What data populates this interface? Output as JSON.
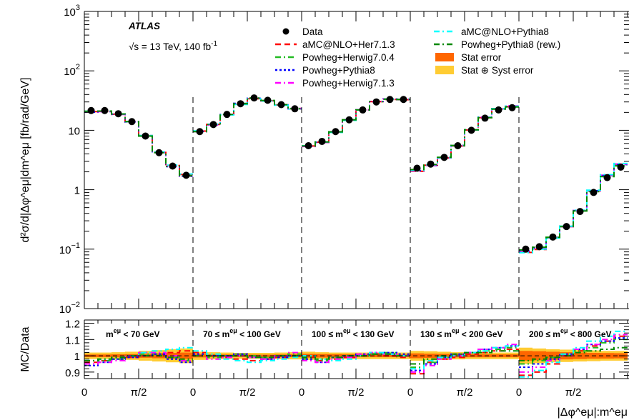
{
  "chart_data": {
    "type": "line",
    "experiment": "ATLAS",
    "energy_label": "√s = 13 TeV, 140 fb",
    "lumi_superscript": "-1",
    "ylabel": "d²σ/d|Δφ^eμ|dm^eμ [fb/rad/GeV]",
    "ratio_ylabel": "MC/Data",
    "xlabel": "|Δφ^eμ|:m^eμ",
    "y_scale": "log",
    "ylim": [
      0.01,
      1000
    ],
    "ratio_ylim": [
      0.86,
      1.22
    ],
    "y_ticks": [
      {
        "base": "10",
        "exp": "3"
      },
      {
        "base": "10",
        "exp": "2"
      },
      {
        "base": "10",
        "exp": ""
      },
      {
        "base": "1",
        "exp": ""
      },
      {
        "base": "10",
        "exp": "−1"
      },
      {
        "base": "10",
        "exp": "−2"
      }
    ],
    "ratio_ticks": [
      "1.2",
      "1.1",
      "1",
      "0.9"
    ],
    "x_tick_labels": [
      "0",
      "π/2",
      "0",
      "π/2",
      "0",
      "π/2",
      "0",
      "π/2",
      "0",
      "π/2"
    ],
    "mass_bins": [
      {
        "label_pre": "",
        "label_post": " < 70 GeV"
      },
      {
        "label_pre": "70 ≤ ",
        "label_post": " < 100 GeV"
      },
      {
        "label_pre": "100 ≤ ",
        "label_post": " < 130 GeV"
      },
      {
        "label_pre": "130 ≤ ",
        "label_post": " < 200 GeV"
      },
      {
        "label_pre": "200 ≤ ",
        "label_post": " < 800 GeV"
      }
    ],
    "mass_symbol": "m",
    "mass_superscript": "eμ",
    "legend": [
      {
        "label": "Data",
        "style": "marker",
        "color": "#000000"
      },
      {
        "label": "aMC@NLO+Her7.1.3",
        "style": "dash",
        "color": "#ff0000"
      },
      {
        "label": "Powheg+Herwig7.0.4",
        "style": "dashdot",
        "color": "#22bb22"
      },
      {
        "label": "Powheg+Pythia8",
        "style": "dot",
        "color": "#0000ff"
      },
      {
        "label": "Powheg+Herwig7.1.3",
        "style": "dashdot",
        "color": "#ff00ff"
      },
      {
        "label": "aMC@NLO+Pythia8",
        "style": "dashdot",
        "color": "#00ffff"
      },
      {
        "label": "Powheg+Pythia8 (rew.)",
        "style": "dashdot",
        "color": "#008800"
      },
      {
        "label": "Stat error",
        "style": "box",
        "color": "#ff6600"
      },
      {
        "label": "Stat ⊕ Syst error",
        "style": "box",
        "color": "#ffcc33"
      }
    ],
    "data_values": [
      [
        21.5,
        21.5,
        19,
        14,
        8,
        4.2,
        2.5,
        1.75
      ],
      [
        9.5,
        12.5,
        18.5,
        28,
        35,
        32,
        27,
        23
      ],
      [
        5.5,
        6.5,
        9.5,
        15,
        22,
        30,
        33,
        33
      ],
      [
        2.3,
        2.7,
        3.5,
        5.5,
        10,
        16,
        22,
        24
      ],
      [
        0.1,
        0.11,
        0.16,
        0.24,
        0.43,
        0.9,
        1.6,
        2.4
      ]
    ],
    "ratio_values": {
      "aMC@NLO+Her7.1.3": [
        [
          0.96,
          0.97,
          0.98,
          0.99,
          1.0,
          1.01,
          1.02,
          1.03
        ],
        [
          1.02,
          1.0,
          0.99,
          0.98,
          0.97,
          0.98,
          0.99,
          1.0
        ],
        [
          0.99,
          0.97,
          0.98,
          0.99,
          1.0,
          1.01,
          1.0,
          0.99
        ],
        [
          0.89,
          0.96,
          0.98,
          0.99,
          1.01,
          1.02,
          1.03,
          1.04
        ],
        [
          0.88,
          0.9,
          0.95,
          1.0,
          1.03,
          1.06,
          1.09,
          1.12
        ]
      ],
      "Powheg+Herwig7.0.4": [
        [
          0.95,
          0.97,
          0.98,
          1.0,
          1.01,
          1.01,
          0.99,
          0.97
        ],
        [
          1.0,
          0.99,
          1.0,
          1.01,
          1.0,
          0.99,
          1.0,
          1.01
        ],
        [
          0.98,
          0.97,
          0.99,
          1.0,
          1.0,
          1.01,
          1.02,
          1.0
        ],
        [
          0.93,
          0.96,
          0.99,
          1.0,
          1.02,
          1.03,
          1.04,
          1.05
        ],
        [
          0.95,
          0.97,
          0.99,
          1.01,
          1.03,
          1.05,
          1.08,
          1.1
        ]
      ],
      "Powheg+Pythia8": [
        [
          0.94,
          0.96,
          0.98,
          0.99,
          1.0,
          1.01,
          0.98,
          0.96
        ],
        [
          1.01,
          1.0,
          1.0,
          1.01,
          0.99,
          0.98,
          0.99,
          1.0
        ],
        [
          0.98,
          0.96,
          0.99,
          1.0,
          1.01,
          1.02,
          1.02,
          1.01
        ],
        [
          0.91,
          0.95,
          0.99,
          1.01,
          1.02,
          1.04,
          1.05,
          1.06
        ],
        [
          0.93,
          0.95,
          0.98,
          1.01,
          1.04,
          1.07,
          1.09,
          1.11
        ]
      ],
      "Powheg+Herwig7.1.3": [
        [
          0.95,
          0.96,
          0.97,
          1.0,
          1.02,
          1.02,
          1.0,
          0.97
        ],
        [
          1.0,
          0.98,
          0.99,
          1.0,
          0.99,
          0.98,
          1.0,
          1.02
        ],
        [
          0.97,
          0.96,
          0.98,
          0.99,
          1.01,
          1.02,
          1.01,
          1.0
        ],
        [
          0.9,
          0.94,
          0.98,
          1.0,
          1.02,
          1.04,
          1.05,
          1.07
        ],
        [
          0.9,
          0.93,
          0.97,
          1.0,
          1.04,
          1.07,
          1.1,
          1.13
        ]
      ],
      "aMC@NLO+Pythia8": [
        [
          0.97,
          0.98,
          0.99,
          1.0,
          1.02,
          1.03,
          1.04,
          1.05
        ],
        [
          1.03,
          1.01,
          0.98,
          0.97,
          0.96,
          0.97,
          0.98,
          0.99
        ],
        [
          1.0,
          0.98,
          0.97,
          0.98,
          1.0,
          1.02,
          1.01,
          1.0
        ],
        [
          0.92,
          0.97,
          0.99,
          1.0,
          1.02,
          1.03,
          1.05,
          1.06
        ],
        [
          0.87,
          0.91,
          0.96,
          1.01,
          1.05,
          1.09,
          1.12,
          1.15
        ]
      ],
      "Powheg+Pythia8 (rew.)": [
        [
          0.97,
          0.98,
          0.99,
          1.0,
          1.0,
          1.0,
          0.99,
          0.98
        ],
        [
          1.0,
          1.0,
          1.0,
          1.0,
          0.99,
          0.99,
          1.0,
          1.0
        ],
        [
          0.99,
          0.98,
          0.99,
          1.0,
          1.0,
          1.01,
          1.01,
          1.0
        ],
        [
          0.95,
          0.98,
          1.0,
          1.01,
          1.02,
          1.02,
          1.03,
          1.03
        ],
        [
          0.97,
          0.98,
          0.99,
          1.0,
          1.02,
          1.03,
          1.04,
          1.05
        ]
      ]
    },
    "stat_error": [
      [
        0.008,
        0.008,
        0.009,
        0.01,
        0.012,
        0.015,
        0.018,
        0.02
      ],
      [
        0.01,
        0.009,
        0.008,
        0.007,
        0.007,
        0.007,
        0.008,
        0.009
      ],
      [
        0.012,
        0.011,
        0.01,
        0.009,
        0.008,
        0.008,
        0.008,
        0.008
      ],
      [
        0.015,
        0.013,
        0.012,
        0.01,
        0.009,
        0.009,
        0.009,
        0.009
      ],
      [
        0.03,
        0.028,
        0.025,
        0.022,
        0.02,
        0.018,
        0.017,
        0.016
      ]
    ],
    "total_error": [
      [
        0.02,
        0.02,
        0.022,
        0.025,
        0.03,
        0.035,
        0.04,
        0.045
      ],
      [
        0.025,
        0.022,
        0.02,
        0.018,
        0.018,
        0.018,
        0.02,
        0.022
      ],
      [
        0.025,
        0.022,
        0.02,
        0.02,
        0.02,
        0.02,
        0.02,
        0.02
      ],
      [
        0.03,
        0.028,
        0.025,
        0.022,
        0.02,
        0.02,
        0.02,
        0.02
      ],
      [
        0.05,
        0.045,
        0.04,
        0.038,
        0.035,
        0.033,
        0.03,
        0.03
      ]
    ]
  }
}
